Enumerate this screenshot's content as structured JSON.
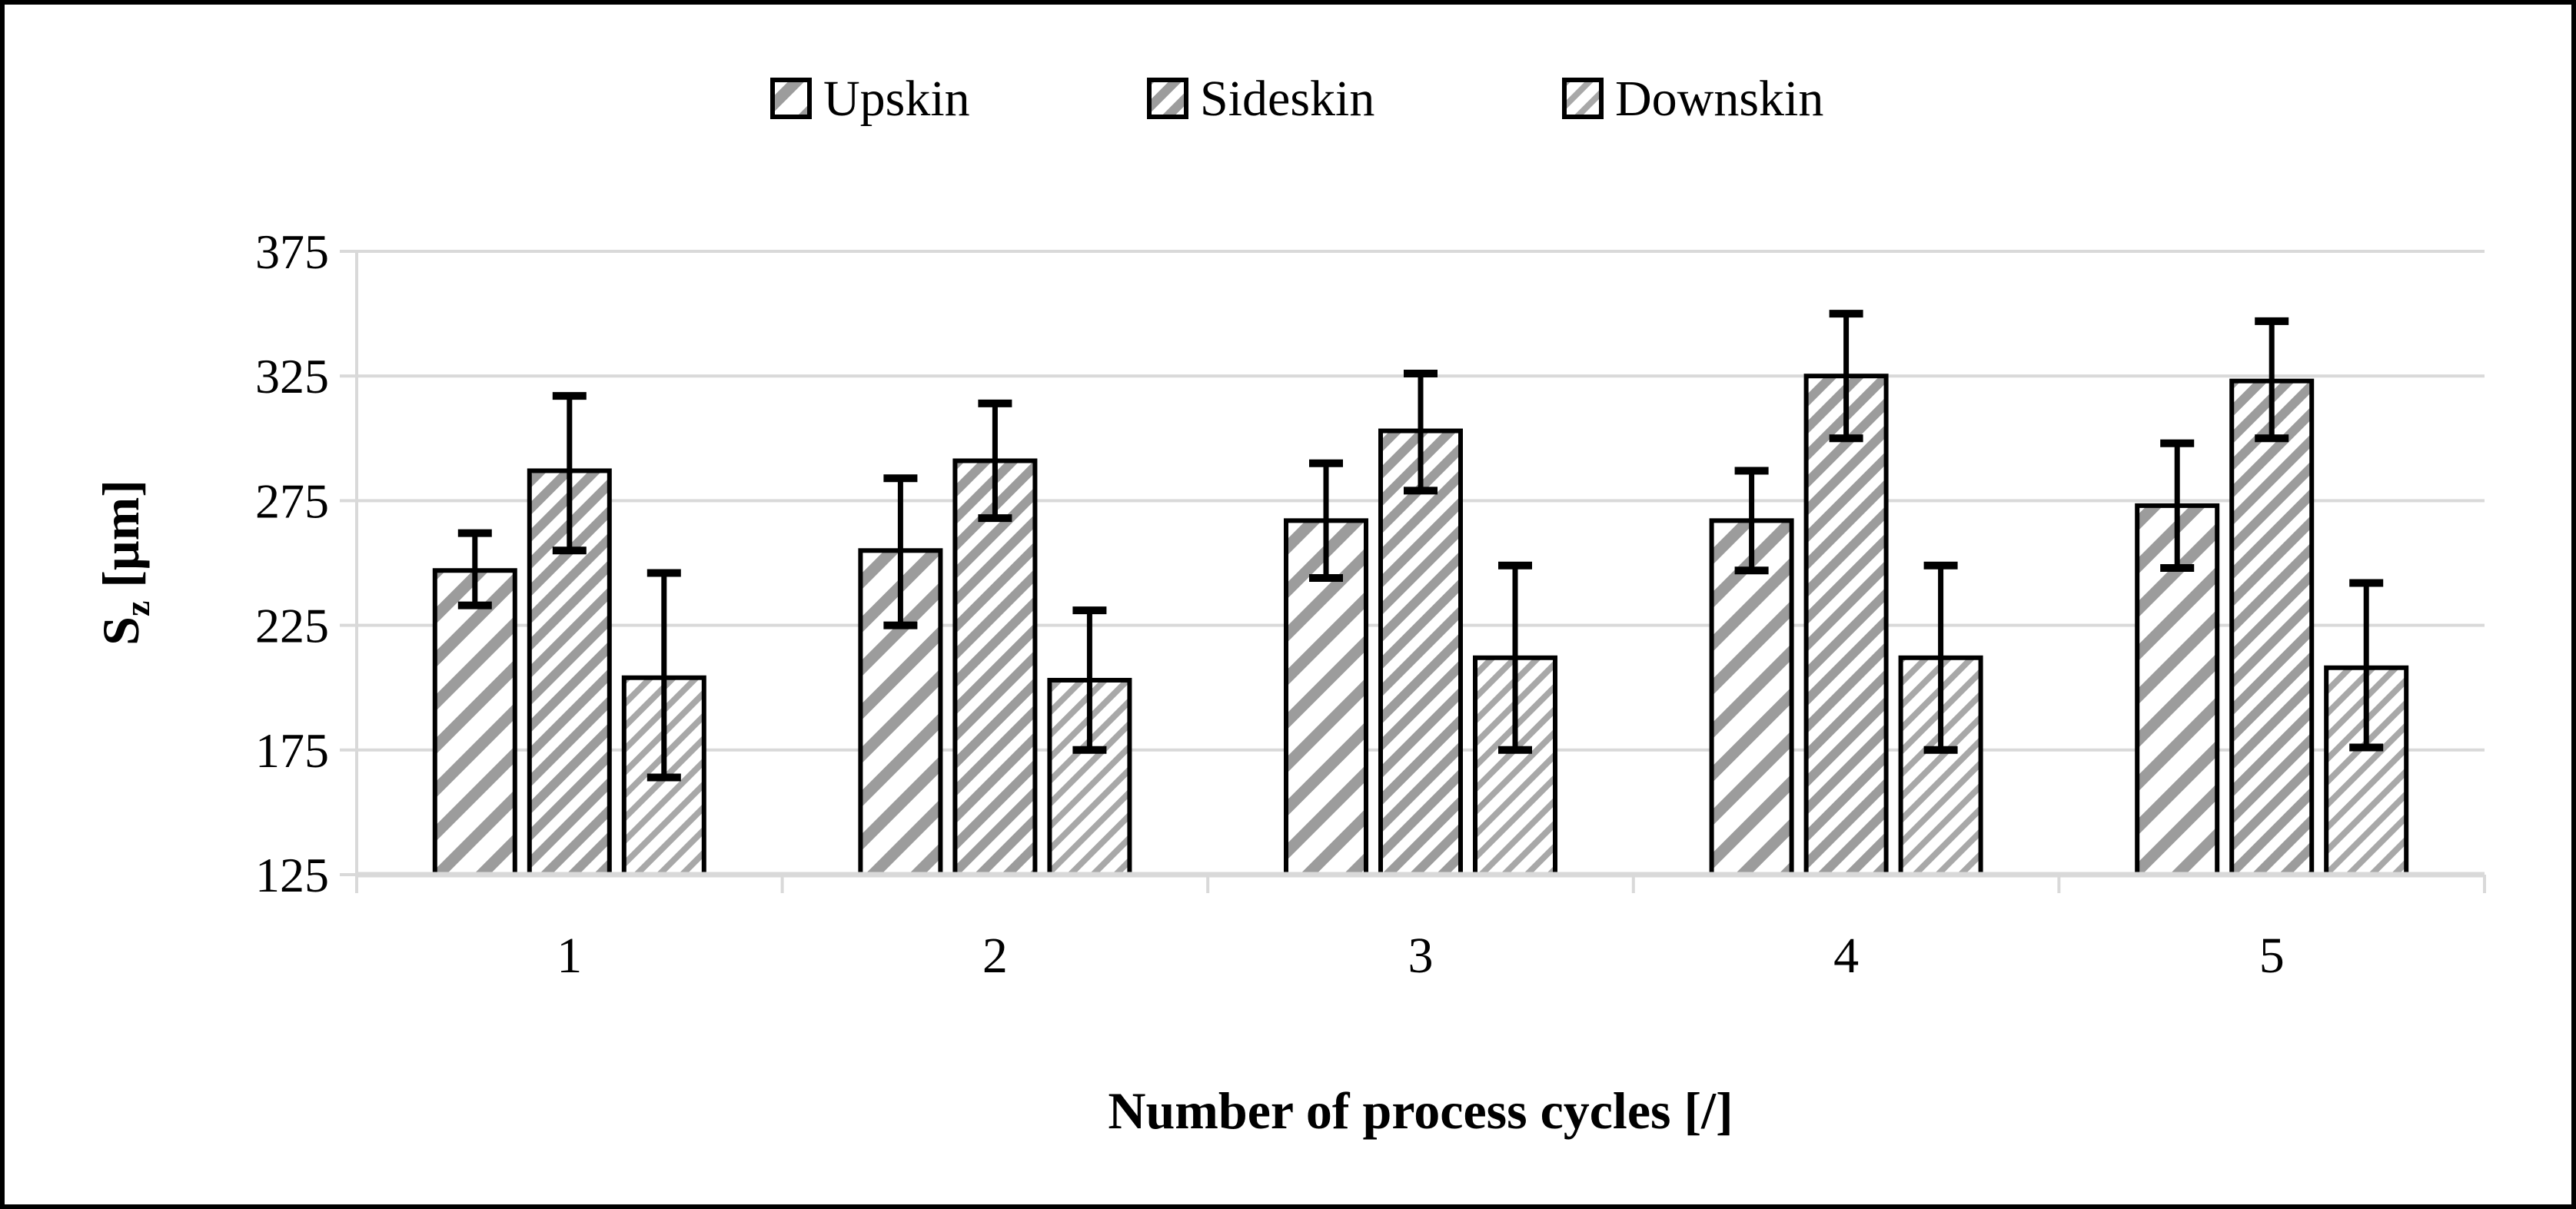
{
  "chart_data": {
    "type": "bar",
    "title": "",
    "categories": [
      "1",
      "2",
      "3",
      "4",
      "5"
    ],
    "series": [
      {
        "name": "Upskin",
        "hatch": "hatch-wide",
        "values": [
          247,
          255,
          267,
          267,
          273
        ],
        "err_up": [
          15,
          29,
          23,
          20,
          25
        ],
        "err_down": [
          14,
          30,
          23,
          20,
          25
        ]
      },
      {
        "name": "Sideskin",
        "hatch": "hatch-dense",
        "values": [
          287,
          291,
          303,
          325,
          323
        ],
        "err_up": [
          30,
          23,
          23,
          25,
          24
        ],
        "err_down": [
          32,
          23,
          24,
          25,
          23
        ]
      },
      {
        "name": "Downskin",
        "hatch": "hatch-fine",
        "values": [
          204,
          203,
          212,
          212,
          208
        ],
        "err_up": [
          42,
          28,
          37,
          37,
          34
        ],
        "err_down": [
          40,
          28,
          37,
          37,
          32
        ]
      }
    ],
    "xlabel": "Number of process cycles [/]",
    "ylabel": {
      "main": "S",
      "sub": "z",
      "unit": " [μm]"
    },
    "ylim": [
      125,
      375
    ],
    "ytick_step": 50,
    "yticks": [
      375,
      325,
      275,
      225,
      175,
      125
    ],
    "grid": true,
    "legend_position": "top-center",
    "colors": {
      "background": "#ffffff",
      "frame_border": "#000000",
      "grid": "#d9d9d9",
      "axis": "#d9d9d9",
      "bar_border": "#000000",
      "error_bar": "#000000",
      "text": "#000000",
      "hatch_wide_stroke": "#9c9c9c",
      "hatch_dense_stroke": "#9c9c9c",
      "hatch_fine_stroke": "#a8a8a8"
    }
  }
}
